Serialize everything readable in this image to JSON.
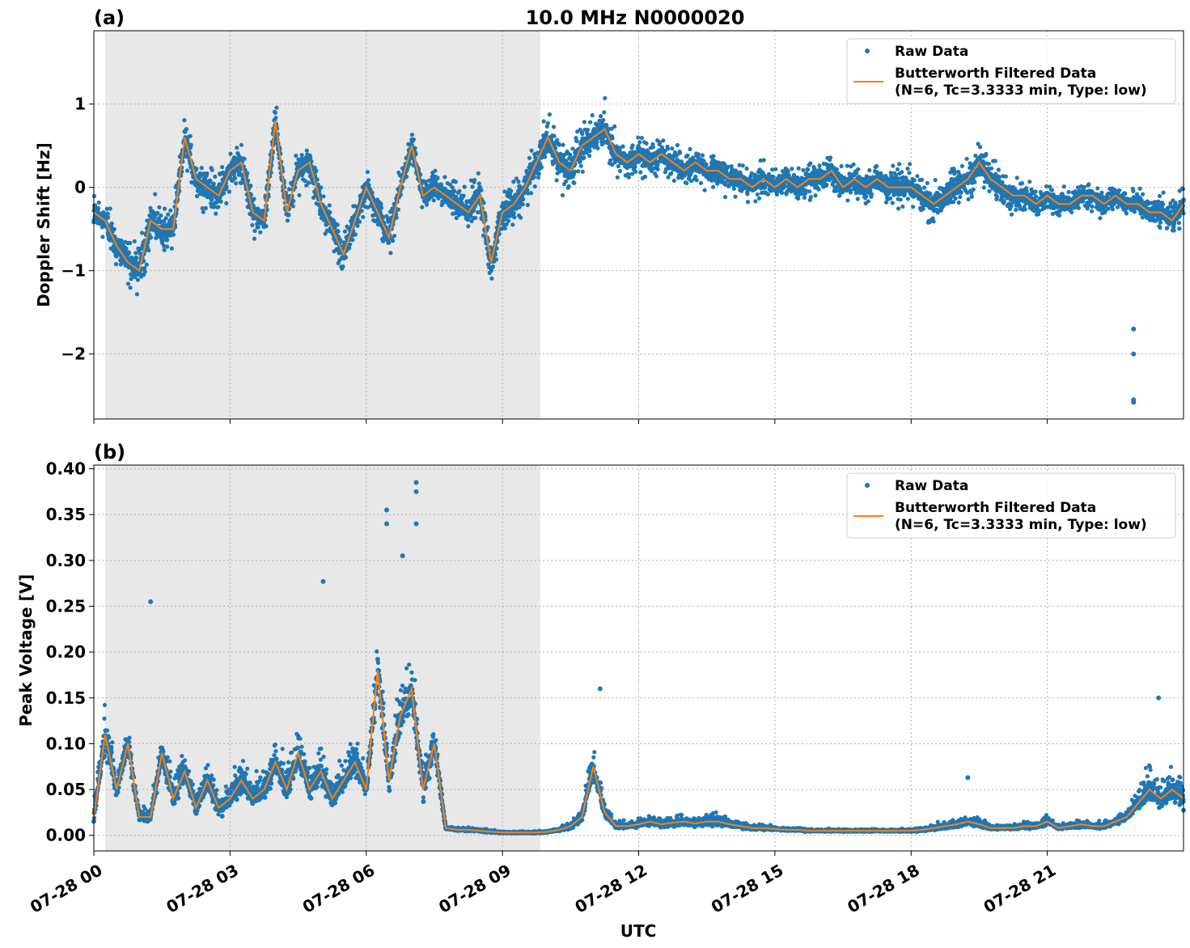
{
  "figure": {
    "title": "10.0 MHz N0000020",
    "xlabel": "UTC",
    "x_ticks": [
      "07-28 00",
      "07-28 03",
      "07-28 06",
      "07-28 09",
      "07-28 12",
      "07-28 15",
      "07-28 18",
      "07-28 21"
    ],
    "x_tick_hours": [
      0,
      3,
      6,
      9,
      12,
      15,
      18,
      21
    ],
    "xlim_hours": [
      0,
      24
    ],
    "shaded_interval_hours": [
      0.25,
      9.83
    ],
    "colors": {
      "raw": "#1f77b4",
      "filtered": "#ff7f0e",
      "shade": "#e8e8e8"
    }
  },
  "legend": {
    "raw_label": "Raw Data",
    "filtered_line1": "Butterworth Filtered Data",
    "filtered_line2": "(N=6, Tc=3.3333 min, Type: low)"
  },
  "chart_data": [
    {
      "type": "scatter",
      "panel_label": "(a)",
      "ylabel": "Doppler Shift [Hz]",
      "ylim": [
        -2.78,
        1.88
      ],
      "y_ticks": [
        -2,
        -1,
        0,
        1
      ],
      "y_tick_labels": [
        "−2",
        "−1",
        "0",
        "1"
      ],
      "grid": true,
      "legend_position": "top-right",
      "x_hours": [
        0,
        0.25,
        0.5,
        0.75,
        1,
        1.25,
        1.5,
        1.75,
        2,
        2.25,
        2.5,
        2.75,
        3,
        3.25,
        3.5,
        3.75,
        4,
        4.25,
        4.5,
        4.75,
        5,
        5.25,
        5.5,
        5.75,
        6,
        6.25,
        6.5,
        6.75,
        7,
        7.25,
        7.5,
        7.75,
        8,
        8.25,
        8.5,
        8.75,
        9,
        9.25,
        9.5,
        9.75,
        10,
        10.25,
        10.5,
        10.75,
        11,
        11.25,
        11.5,
        11.75,
        12,
        12.25,
        12.5,
        12.75,
        13,
        13.25,
        13.5,
        13.75,
        14,
        14.25,
        14.5,
        14.75,
        15,
        15.25,
        15.5,
        15.75,
        16,
        16.25,
        16.5,
        16.75,
        17,
        17.25,
        17.5,
        17.75,
        18,
        18.25,
        18.5,
        18.75,
        19,
        19.25,
        19.5,
        19.75,
        20,
        20.25,
        20.5,
        20.75,
        21,
        21.25,
        21.5,
        21.75,
        22,
        22.25,
        22.5,
        22.75,
        23,
        23.25,
        23.5,
        23.75,
        24
      ],
      "series": [
        {
          "name": "Butterworth Filtered Data",
          "y": [
            -0.3,
            -0.4,
            -0.7,
            -0.9,
            -1.0,
            -0.4,
            -0.5,
            -0.5,
            0.6,
            0.1,
            0.0,
            -0.1,
            0.2,
            0.3,
            -0.3,
            -0.4,
            0.8,
            -0.3,
            0.2,
            0.3,
            -0.2,
            -0.5,
            -0.8,
            -0.4,
            0.0,
            -0.3,
            -0.6,
            0.0,
            0.5,
            -0.1,
            0.0,
            -0.1,
            -0.2,
            -0.3,
            -0.1,
            -0.9,
            -0.3,
            -0.2,
            0.0,
            0.3,
            0.6,
            0.3,
            0.2,
            0.5,
            0.6,
            0.7,
            0.4,
            0.3,
            0.4,
            0.3,
            0.4,
            0.3,
            0.2,
            0.3,
            0.2,
            0.2,
            0.1,
            0.1,
            0.0,
            0.1,
            0.0,
            0.1,
            0.0,
            0.1,
            0.1,
            0.2,
            0.0,
            0.1,
            0.0,
            0.1,
            0.0,
            0.0,
            0.0,
            -0.1,
            -0.2,
            -0.1,
            0.0,
            0.1,
            0.3,
            0.1,
            0.0,
            -0.1,
            -0.1,
            -0.2,
            -0.1,
            -0.2,
            -0.2,
            -0.1,
            -0.1,
            -0.2,
            -0.1,
            -0.2,
            -0.2,
            -0.3,
            -0.3,
            -0.4,
            -0.2
          ]
        },
        {
          "name": "Raw Data",
          "outliers": [
            [
              22.9,
              -1.7
            ],
            [
              22.9,
              -2.0
            ],
            [
              22.9,
              -2.55
            ],
            [
              22.9,
              -2.58
            ]
          ]
        }
      ],
      "raw_spread": [
        0.35,
        0.35,
        0.4,
        0.4,
        0.45,
        0.4,
        0.4,
        0.35,
        0.35,
        0.35,
        0.35,
        0.35,
        0.4,
        0.4,
        0.35,
        0.35,
        0.35,
        0.3,
        0.35,
        0.35,
        0.35,
        0.35,
        0.35,
        0.3,
        0.3,
        0.35,
        0.35,
        0.3,
        0.3,
        0.3,
        0.3,
        0.3,
        0.35,
        0.4,
        0.4,
        0.45,
        0.4,
        0.4,
        0.45,
        0.45,
        0.45,
        0.45,
        0.4,
        0.4,
        0.4,
        0.45,
        0.35,
        0.3,
        0.3,
        0.3,
        0.3,
        0.3,
        0.3,
        0.3,
        0.3,
        0.3,
        0.3,
        0.3,
        0.3,
        0.3,
        0.3,
        0.3,
        0.3,
        0.3,
        0.3,
        0.3,
        0.3,
        0.3,
        0.3,
        0.3,
        0.3,
        0.35,
        0.35,
        0.35,
        0.35,
        0.35,
        0.35,
        0.35,
        0.4,
        0.35,
        0.3,
        0.3,
        0.25,
        0.25,
        0.25,
        0.25,
        0.25,
        0.25,
        0.25,
        0.25,
        0.25,
        0.25,
        0.25,
        0.25,
        0.3,
        0.3,
        0.3
      ]
    },
    {
      "type": "scatter",
      "panel_label": "(b)",
      "ylabel": "Peak Voltage [V]",
      "ylim": [
        -0.017,
        0.404
      ],
      "y_ticks": [
        0.0,
        0.05,
        0.1,
        0.15,
        0.2,
        0.25,
        0.3,
        0.35,
        0.4
      ],
      "y_tick_labels": [
        "0.00",
        "0.05",
        "0.10",
        "0.15",
        "0.20",
        "0.25",
        "0.30",
        "0.35",
        "0.40"
      ],
      "grid": true,
      "legend_position": "top-right",
      "x_hours": [
        0,
        0.25,
        0.5,
        0.75,
        1,
        1.25,
        1.5,
        1.75,
        2,
        2.25,
        2.5,
        2.75,
        3,
        3.25,
        3.5,
        3.75,
        4,
        4.25,
        4.5,
        4.75,
        5,
        5.25,
        5.5,
        5.75,
        6,
        6.25,
        6.5,
        6.75,
        7,
        7.25,
        7.5,
        7.75,
        8,
        8.25,
        8.5,
        8.75,
        9,
        9.25,
        9.5,
        9.75,
        10,
        10.25,
        10.5,
        10.75,
        11,
        11.25,
        11.5,
        11.75,
        12,
        12.25,
        12.5,
        12.75,
        13,
        13.25,
        13.5,
        13.75,
        14,
        14.25,
        14.5,
        14.75,
        15,
        15.25,
        15.5,
        15.75,
        16,
        16.25,
        16.5,
        16.75,
        17,
        17.25,
        17.5,
        17.75,
        18,
        18.25,
        18.5,
        18.75,
        19,
        19.25,
        19.5,
        19.75,
        20,
        20.25,
        20.5,
        20.75,
        21,
        21.25,
        21.5,
        21.75,
        22,
        22.25,
        22.5,
        22.75,
        23,
        23.25,
        23.5,
        23.75,
        24
      ],
      "series": [
        {
          "name": "Butterworth Filtered Data",
          "y": [
            0.02,
            0.11,
            0.05,
            0.1,
            0.02,
            0.02,
            0.09,
            0.04,
            0.07,
            0.03,
            0.06,
            0.03,
            0.04,
            0.06,
            0.04,
            0.05,
            0.08,
            0.05,
            0.09,
            0.05,
            0.07,
            0.04,
            0.06,
            0.08,
            0.05,
            0.18,
            0.06,
            0.13,
            0.16,
            0.05,
            0.1,
            0.008,
            0.006,
            0.006,
            0.005,
            0.004,
            0.003,
            0.003,
            0.003,
            0.003,
            0.004,
            0.006,
            0.01,
            0.02,
            0.075,
            0.025,
            0.01,
            0.01,
            0.012,
            0.015,
            0.012,
            0.014,
            0.015,
            0.013,
            0.015,
            0.015,
            0.012,
            0.01,
            0.008,
            0.008,
            0.007,
            0.006,
            0.006,
            0.005,
            0.005,
            0.005,
            0.005,
            0.005,
            0.005,
            0.005,
            0.005,
            0.005,
            0.005,
            0.006,
            0.008,
            0.01,
            0.012,
            0.015,
            0.012,
            0.008,
            0.008,
            0.008,
            0.01,
            0.01,
            0.015,
            0.008,
            0.01,
            0.012,
            0.01,
            0.01,
            0.015,
            0.02,
            0.035,
            0.05,
            0.04,
            0.05,
            0.04
          ]
        },
        {
          "name": "Raw Data",
          "outliers": [
            [
              1.25,
              0.255
            ],
            [
              6.45,
              0.355
            ],
            [
              6.45,
              0.34
            ],
            [
              6.8,
              0.305
            ],
            [
              7.1,
              0.385
            ],
            [
              7.1,
              0.375
            ],
            [
              7.1,
              0.34
            ],
            [
              5.05,
              0.277
            ],
            [
              11.15,
              0.16
            ],
            [
              19.25,
              0.063
            ],
            [
              23.45,
              0.15
            ]
          ]
        }
      ],
      "raw_spread": [
        0.025,
        0.05,
        0.03,
        0.04,
        0.015,
        0.015,
        0.04,
        0.03,
        0.04,
        0.025,
        0.035,
        0.03,
        0.035,
        0.04,
        0.035,
        0.035,
        0.04,
        0.035,
        0.045,
        0.04,
        0.045,
        0.035,
        0.04,
        0.045,
        0.04,
        0.06,
        0.045,
        0.055,
        0.06,
        0.04,
        0.05,
        0.004,
        0.004,
        0.004,
        0.003,
        0.003,
        0.002,
        0.002,
        0.002,
        0.002,
        0.003,
        0.004,
        0.008,
        0.015,
        0.04,
        0.02,
        0.008,
        0.008,
        0.01,
        0.012,
        0.01,
        0.012,
        0.012,
        0.012,
        0.014,
        0.014,
        0.01,
        0.008,
        0.006,
        0.006,
        0.005,
        0.004,
        0.004,
        0.003,
        0.003,
        0.003,
        0.003,
        0.003,
        0.003,
        0.003,
        0.003,
        0.003,
        0.003,
        0.004,
        0.006,
        0.008,
        0.01,
        0.012,
        0.01,
        0.006,
        0.006,
        0.006,
        0.008,
        0.008,
        0.01,
        0.006,
        0.008,
        0.01,
        0.008,
        0.008,
        0.012,
        0.015,
        0.025,
        0.035,
        0.03,
        0.035,
        0.03
      ]
    }
  ]
}
